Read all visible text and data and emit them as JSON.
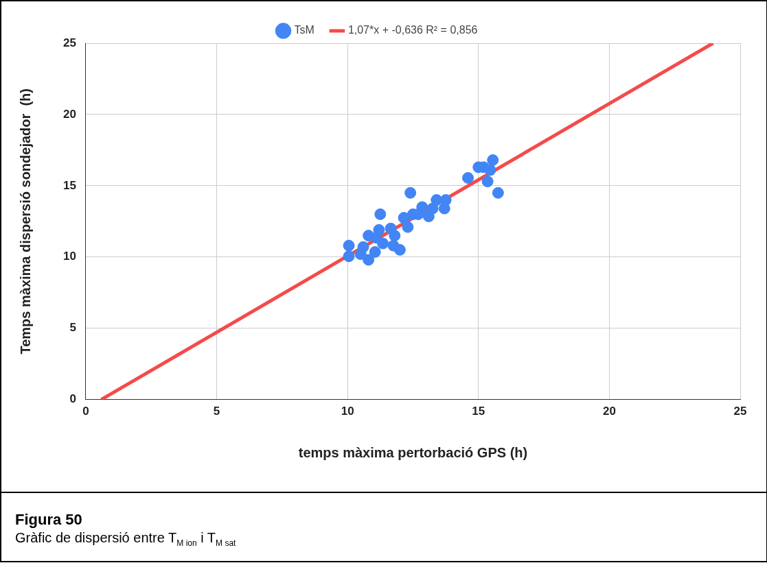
{
  "chart_data": {
    "type": "scatter",
    "title": "Figura 50",
    "subtitle": "Gràfic de dispersió entre T$_{M ion}$ i T$_{M sat}$",
    "xlabel": "temps màxima pertorbació GPS (h)",
    "ylabel": "Temps màxima dispersió sondejador  (h)",
    "xlim": [
      0,
      25
    ],
    "ylim": [
      0,
      25
    ],
    "xticks": [
      0,
      5,
      10,
      15,
      20,
      25
    ],
    "yticks": [
      0,
      5,
      10,
      15,
      20,
      25
    ],
    "grid": true,
    "legend": "top",
    "series": [
      {
        "name": "TsM",
        "color": "#4285f4",
        "marker": "circle",
        "x": [
          10.05,
          10.05,
          10.5,
          10.6,
          10.8,
          10.8,
          11.05,
          11.1,
          11.2,
          11.25,
          11.35,
          11.4,
          11.5,
          11.65,
          11.75,
          11.8,
          12.0,
          12.15,
          12.3,
          12.4,
          12.5,
          12.7,
          12.85,
          13.1,
          13.25,
          13.4,
          13.7,
          13.75,
          14.6,
          15.0,
          15.2,
          15.35,
          15.45,
          15.55,
          15.75
        ],
        "values": [
          10.05,
          10.8,
          10.2,
          10.7,
          11.5,
          9.8,
          10.35,
          11.35,
          11.9,
          13.0,
          10.95,
          null,
          null,
          12.0,
          10.8,
          11.5,
          10.5,
          12.75,
          12.1,
          14.5,
          13.0,
          13.0,
          13.5,
          12.85,
          13.4,
          14.0,
          13.4,
          14.0,
          15.55,
          16.3,
          16.3,
          15.3,
          16.1,
          16.8,
          14.5
        ]
      },
      {
        "name": "1,07*x + -0,636 R² = 0,856",
        "type": "line",
        "marker": "none",
        "color": "#f44b4b",
        "x": [
          0.594,
          23.96
        ],
        "values": [
          0,
          25
        ]
      }
    ]
  }
}
